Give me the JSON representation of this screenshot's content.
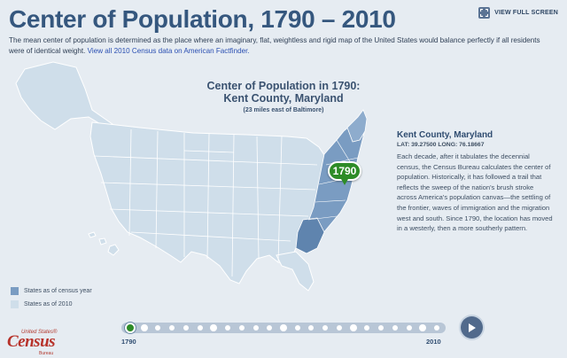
{
  "header": {
    "title": "Center of Population, 1790 – 2010",
    "fullscreen_label": "VIEW FULL SCREEN"
  },
  "intro": {
    "text": "The mean center of population is determined as the place where an imaginary, flat, weightless and rigid map of the United States would balance perfectly if all residents were of identical weight.",
    "link": "View all 2010 Census data on American Factfinder."
  },
  "map": {
    "heading": "Center of Population in 1790:",
    "location": "Kent County, Maryland",
    "note": "(23 miles east of Baltimore)",
    "pin_year": "1790",
    "colors": {
      "census_year": "#7a9cc2",
      "census_year_dark": "#5f84ae",
      "states_2010": "#cfdeea",
      "border": "#ffffff"
    }
  },
  "info": {
    "place": "Kent County, Maryland",
    "coords": "LAT: 39.27500 LONG: 76.18667",
    "description": "Each decade, after it tabulates the decennial census, the Census Bureau calculates the center of population. Historically, it has followed a trail that reflects the sweep of the nation's brush stroke across America's population canvas—the settling of the frontier, waves of immigration and the migration west and south. Since 1790, the location has moved in a westerly, then a more southerly pattern."
  },
  "legend": {
    "items": [
      {
        "label": "States as of census year",
        "color": "#7a9cc2"
      },
      {
        "label": "States as of 2010",
        "color": "#cfdeea"
      }
    ]
  },
  "logo": {
    "small": "United States®",
    "big": "Census",
    "bureau": "Bureau"
  },
  "timeline": {
    "start_label": "1790",
    "end_label": "2010",
    "years": [
      1790,
      1800,
      1810,
      1820,
      1830,
      1840,
      1850,
      1860,
      1870,
      1880,
      1890,
      1900,
      1910,
      1920,
      1930,
      1940,
      1950,
      1960,
      1970,
      1980,
      1990,
      2000,
      2010
    ],
    "active_year": 1790,
    "play_icon": "play-icon"
  }
}
